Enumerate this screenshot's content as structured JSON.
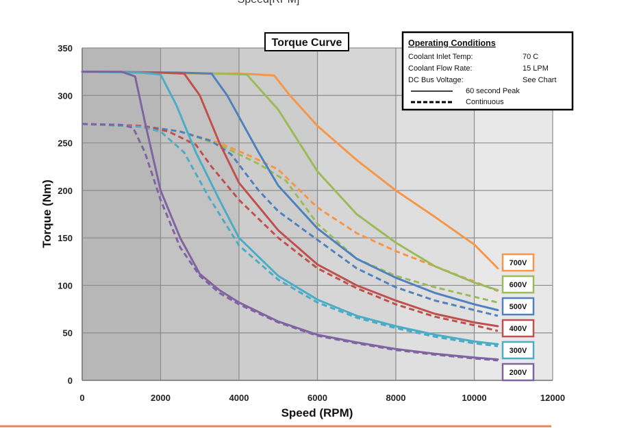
{
  "top_cut_text": "Speed[RPM]",
  "chart_data": {
    "type": "line",
    "title": "Torque Curve",
    "xlabel": "Speed (RPM)",
    "ylabel": "Torque (Nm)",
    "xlim": [
      0,
      12000
    ],
    "ylim": [
      0,
      350
    ],
    "x_ticks": [
      0,
      2000,
      4000,
      6000,
      8000,
      10000,
      12000
    ],
    "y_ticks": [
      0,
      50,
      100,
      150,
      200,
      250,
      300,
      350
    ],
    "grid": true,
    "legend": {
      "header": "Operating Conditions",
      "rows": [
        {
          "label": "Coolant Inlet Temp:",
          "value": "70  C"
        },
        {
          "label": "Coolant Flow Rate:",
          "value": "15 LPM"
        },
        {
          "label": "DC Bus Voltage:",
          "value": "See Chart"
        }
      ],
      "line_styles": [
        {
          "style": "solid",
          "label": "60 second Peak"
        },
        {
          "style": "dashed",
          "label": "Continuous"
        }
      ]
    },
    "series": [
      {
        "name": "700V",
        "color": "#f79646",
        "peak": [
          [
            0,
            325
          ],
          [
            1000,
            325
          ],
          [
            2000,
            324
          ],
          [
            3000,
            323
          ],
          [
            4000,
            323
          ],
          [
            4500,
            322
          ],
          [
            4900,
            321
          ],
          [
            5300,
            300
          ],
          [
            6000,
            268
          ],
          [
            7000,
            232
          ],
          [
            8000,
            200
          ],
          [
            9000,
            172
          ],
          [
            10000,
            143
          ],
          [
            10600,
            118
          ]
        ],
        "continuous": [
          [
            0,
            270
          ],
          [
            1500,
            268
          ],
          [
            2500,
            262
          ],
          [
            3500,
            250
          ],
          [
            4300,
            236
          ],
          [
            5000,
            222
          ],
          [
            6000,
            182
          ],
          [
            7000,
            155
          ],
          [
            8000,
            136
          ],
          [
            9000,
            120
          ],
          [
            10000,
            104
          ],
          [
            10600,
            94
          ]
        ]
      },
      {
        "name": "600V",
        "color": "#9bbb59",
        "peak": [
          [
            0,
            325
          ],
          [
            2000,
            324
          ],
          [
            3500,
            323
          ],
          [
            4200,
            322
          ],
          [
            5000,
            285
          ],
          [
            6000,
            220
          ],
          [
            7000,
            175
          ],
          [
            8000,
            145
          ],
          [
            9000,
            120
          ],
          [
            10000,
            103
          ],
          [
            10600,
            95
          ]
        ],
        "continuous": [
          [
            0,
            270
          ],
          [
            1500,
            268
          ],
          [
            2500,
            262
          ],
          [
            3500,
            248
          ],
          [
            4500,
            228
          ],
          [
            5200,
            210
          ],
          [
            6000,
            165
          ],
          [
            7000,
            128
          ],
          [
            8000,
            110
          ],
          [
            9000,
            98
          ],
          [
            10000,
            88
          ],
          [
            10600,
            82
          ]
        ]
      },
      {
        "name": "500V",
        "color": "#4f81bd",
        "peak": [
          [
            0,
            325
          ],
          [
            2500,
            324
          ],
          [
            3300,
            323
          ],
          [
            3700,
            300
          ],
          [
            4500,
            240
          ],
          [
            5000,
            205
          ],
          [
            6000,
            160
          ],
          [
            7000,
            128
          ],
          [
            8000,
            108
          ],
          [
            9000,
            92
          ],
          [
            10000,
            80
          ],
          [
            10600,
            74
          ]
        ],
        "continuous": [
          [
            0,
            270
          ],
          [
            1500,
            268
          ],
          [
            2500,
            262
          ],
          [
            3300,
            252
          ],
          [
            3800,
            238
          ],
          [
            4500,
            200
          ],
          [
            5000,
            178
          ],
          [
            6000,
            148
          ],
          [
            7000,
            118
          ],
          [
            8000,
            98
          ],
          [
            9000,
            84
          ],
          [
            10000,
            74
          ],
          [
            10600,
            68
          ]
        ]
      },
      {
        "name": "400V",
        "color": "#c0504d",
        "peak": [
          [
            0,
            325
          ],
          [
            2000,
            324
          ],
          [
            2600,
            323
          ],
          [
            3000,
            300
          ],
          [
            3500,
            250
          ],
          [
            4000,
            208
          ],
          [
            5000,
            158
          ],
          [
            6000,
            122
          ],
          [
            7000,
            100
          ],
          [
            8000,
            84
          ],
          [
            9000,
            70
          ],
          [
            10000,
            61
          ],
          [
            10600,
            57
          ]
        ],
        "continuous": [
          [
            0,
            270
          ],
          [
            1500,
            268
          ],
          [
            2200,
            262
          ],
          [
            2900,
            248
          ],
          [
            3300,
            225
          ],
          [
            4000,
            190
          ],
          [
            5000,
            150
          ],
          [
            6000,
            118
          ],
          [
            7000,
            97
          ],
          [
            8000,
            80
          ],
          [
            9000,
            67
          ],
          [
            10000,
            58
          ],
          [
            10600,
            52
          ]
        ]
      },
      {
        "name": "300V",
        "color": "#4bacc6",
        "peak": [
          [
            0,
            325
          ],
          [
            1500,
            324
          ],
          [
            2000,
            322
          ],
          [
            2400,
            290
          ],
          [
            2900,
            240
          ],
          [
            3500,
            190
          ],
          [
            4000,
            150
          ],
          [
            5000,
            110
          ],
          [
            6000,
            85
          ],
          [
            7000,
            68
          ],
          [
            8000,
            57
          ],
          [
            9000,
            48
          ],
          [
            10000,
            41
          ],
          [
            10600,
            38
          ]
        ],
        "continuous": [
          [
            0,
            270
          ],
          [
            1500,
            267
          ],
          [
            2000,
            262
          ],
          [
            2600,
            240
          ],
          [
            3200,
            195
          ],
          [
            4000,
            142
          ],
          [
            5000,
            106
          ],
          [
            6000,
            82
          ],
          [
            7000,
            66
          ],
          [
            8000,
            55
          ],
          [
            9000,
            46
          ],
          [
            10000,
            39
          ],
          [
            10600,
            36
          ]
        ]
      },
      {
        "name": "200V",
        "color": "#8064a2",
        "peak": [
          [
            0,
            325
          ],
          [
            1000,
            325
          ],
          [
            1350,
            320
          ],
          [
            1600,
            272
          ],
          [
            2000,
            200
          ],
          [
            2500,
            150
          ],
          [
            3000,
            112
          ],
          [
            3500,
            95
          ],
          [
            4000,
            82
          ],
          [
            5000,
            62
          ],
          [
            6000,
            48
          ],
          [
            7000,
            40
          ],
          [
            8000,
            33
          ],
          [
            9000,
            28
          ],
          [
            10000,
            24
          ],
          [
            10600,
            22
          ]
        ],
        "continuous": [
          [
            0,
            270
          ],
          [
            1000,
            269
          ],
          [
            1300,
            266
          ],
          [
            1600,
            240
          ],
          [
            2000,
            190
          ],
          [
            2500,
            140
          ],
          [
            3000,
            110
          ],
          [
            3500,
            92
          ],
          [
            4000,
            80
          ],
          [
            5000,
            61
          ],
          [
            6000,
            47
          ],
          [
            7000,
            39
          ],
          [
            8000,
            32
          ],
          [
            9000,
            27
          ],
          [
            10000,
            23
          ],
          [
            10600,
            21
          ]
        ]
      }
    ]
  }
}
